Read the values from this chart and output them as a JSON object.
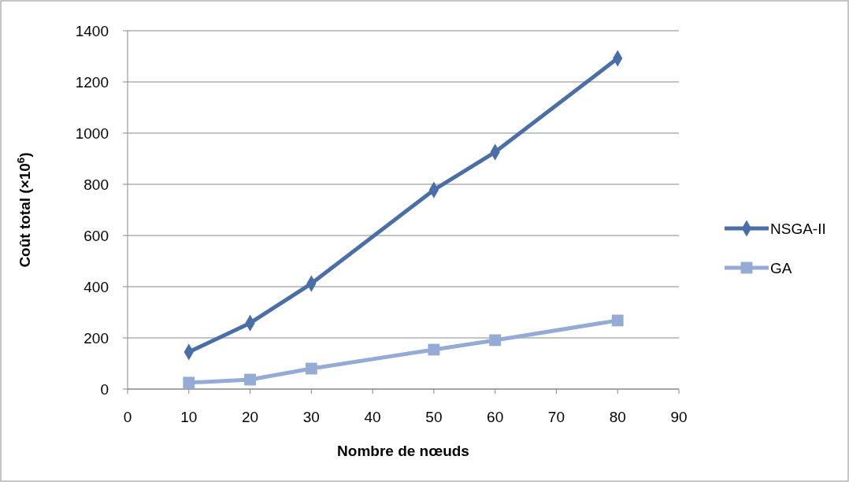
{
  "chart_data": {
    "type": "line",
    "xlabel": "Nombre de nœuds",
    "ylabel": "Coût total (×10$^{6}$)",
    "x": [
      10,
      20,
      30,
      50,
      60,
      80
    ],
    "xlim": [
      0,
      90
    ],
    "xticks": [
      0,
      10,
      20,
      30,
      40,
      50,
      60,
      70,
      80,
      90
    ],
    "ylim": [
      0,
      1400
    ],
    "yticks": [
      0,
      200,
      400,
      600,
      800,
      1000,
      1200,
      1400
    ],
    "grid": "y",
    "legend": "right",
    "line_style": "solid",
    "series": [
      {
        "name": "NSGA-II",
        "color": "#4a6fa8",
        "marker": "diamond",
        "values": [
          145,
          258,
          412,
          778,
          926,
          1292
        ]
      },
      {
        "name": "GA",
        "color": "#93abd5",
        "marker": "square",
        "values": [
          25,
          37,
          80,
          154,
          191,
          268
        ]
      }
    ]
  }
}
